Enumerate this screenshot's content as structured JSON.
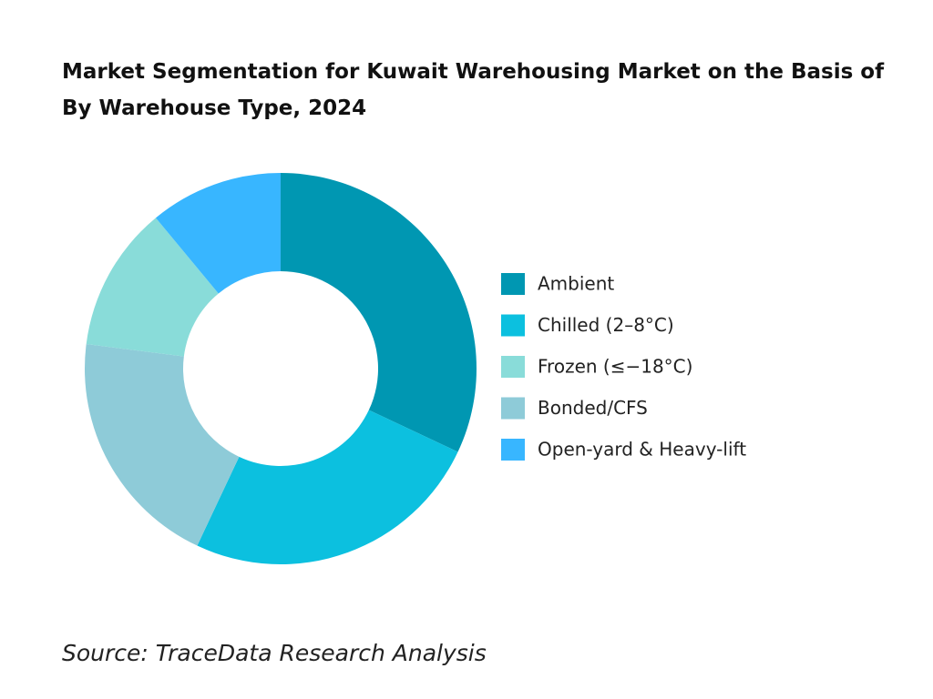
{
  "chart_data": {
    "type": "donut",
    "title": "Market Segmentation for Kuwait Warehousing Market on the Basis of By Warehouse Type, 2024",
    "categories": [
      "Ambient",
      "Chilled (2–8°C)",
      "Frozen (≤−18°C)",
      "Bonded/CFS",
      "Open-yard & Heavy-lift"
    ],
    "values": [
      32,
      25,
      12,
      20,
      11
    ],
    "colors": [
      "#0097b2",
      "#0cc0df",
      "#89dcd9",
      "#8ecbd8",
      "#38b6ff"
    ],
    "legend": "right"
  },
  "source": "Source: TraceData Research Analysis"
}
